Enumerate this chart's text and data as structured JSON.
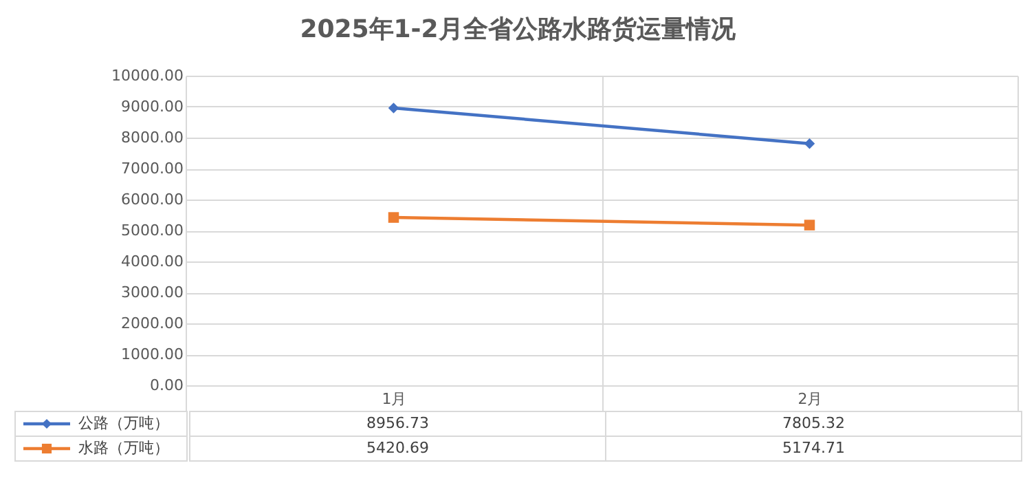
{
  "chart_data": {
    "type": "line",
    "title": "2025年1-2月全省公路水路货运量情况",
    "categories": [
      "1月",
      "2月"
    ],
    "series": [
      {
        "name": "公路（万吨）",
        "color": "#4472c4",
        "marker": "diamond",
        "values": [
          8956.73,
          7805.32
        ]
      },
      {
        "name": "水路（万吨）",
        "color": "#ed7d31",
        "marker": "square",
        "values": [
          5420.69,
          5174.71
        ]
      }
    ],
    "ylim": [
      0,
      10000
    ],
    "yticks": [
      {
        "value": 0,
        "label": "0.00"
      },
      {
        "value": 1000,
        "label": "1000.00"
      },
      {
        "value": 2000,
        "label": "2000.00"
      },
      {
        "value": 3000,
        "label": "3000.00"
      },
      {
        "value": 4000,
        "label": "4000.00"
      },
      {
        "value": 5000,
        "label": "5000.00"
      },
      {
        "value": 6000,
        "label": "6000.00"
      },
      {
        "value": 7000,
        "label": "7000.00"
      },
      {
        "value": 8000,
        "label": "8000.00"
      },
      {
        "value": 9000,
        "label": "9000.00"
      },
      {
        "value": 10000,
        "label": "10000.00"
      }
    ],
    "grid": true,
    "data_labels": true,
    "legend": "bottom left",
    "line_style": "solid"
  }
}
